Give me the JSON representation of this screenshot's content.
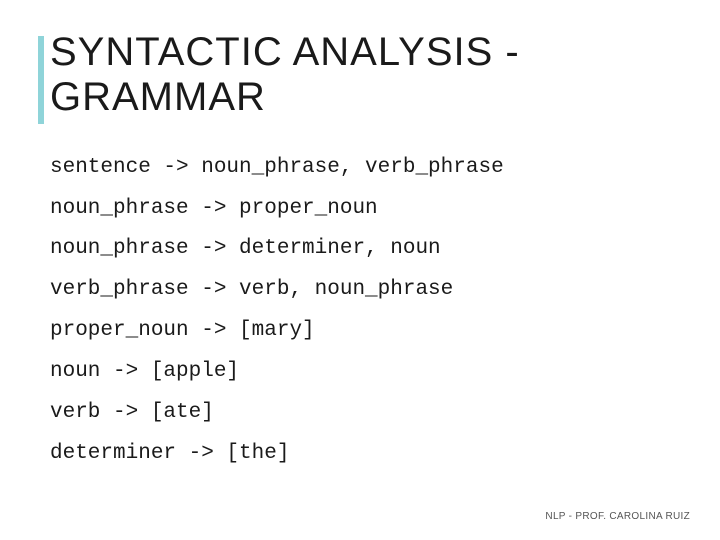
{
  "title_line1": "SYNTACTIC ANALYSIS -",
  "title_line2": "GRAMMAR",
  "accent_color": "#8fd4d9",
  "rules": [
    "sentence -> noun_phrase, verb_phrase",
    "noun_phrase -> proper_noun",
    "noun_phrase -> determiner, noun",
    "verb_phrase -> verb, noun_phrase",
    "proper_noun -> [mary]",
    "noun -> [apple]",
    "verb -> [ate]",
    "determiner -> [the]"
  ],
  "footer": "NLP - PROF. CAROLINA RUIZ",
  "style": {
    "title_fontsize": 40,
    "rule_fontsize": 21,
    "rule_font": "Courier New",
    "title_color": "#1a1a1a",
    "rule_color": "#1a1a1a",
    "footer_fontsize": 10,
    "background_color": "#ffffff"
  }
}
